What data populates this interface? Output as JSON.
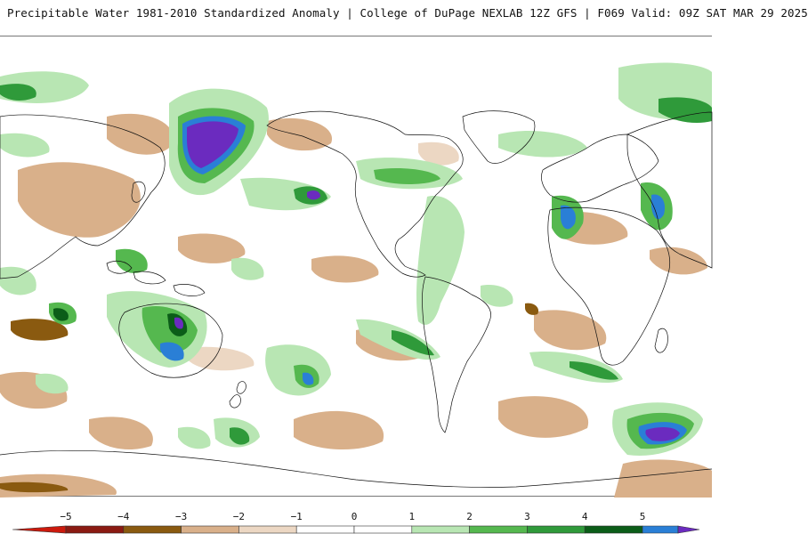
{
  "header": {
    "title": "Precipitable Water 1981-2010 Standardized Anomaly | College of DuPage NEXLAB  12Z GFS | F069 Valid: 09Z SAT MAR 29 2025"
  },
  "colors": {
    "neg5": "#cc1a0d",
    "neg4": "#8b1a12",
    "neg3": "#8a5a10",
    "neg2": "#d9b08a",
    "neg1": "#ecd7c3",
    "zero": "#ffffff",
    "pos1": "#b8e6b3",
    "pos2": "#55b84f",
    "pos3": "#2f9a3a",
    "pos4": "#0b5d18",
    "pos5": "#2a7fd6",
    "pos6": "#6b2bbf",
    "coast": "#111111"
  },
  "colorbar": {
    "ticks": [
      "−5",
      "−4",
      "−3",
      "−2",
      "−1",
      "0",
      "1",
      "2",
      "3",
      "4",
      "5"
    ]
  }
}
